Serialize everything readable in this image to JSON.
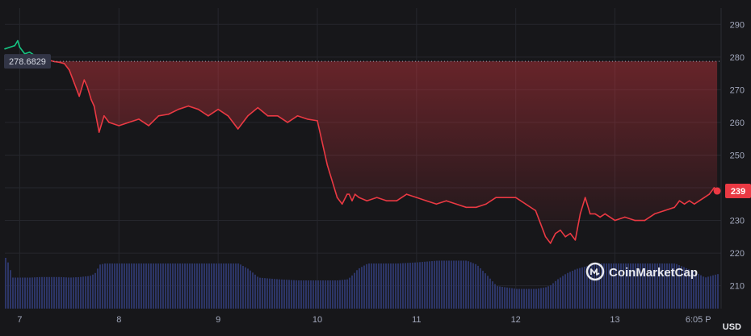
{
  "chart_data": {
    "type": "line",
    "title": "",
    "xlabel": "",
    "ylabel": "",
    "currency_unit": "USD",
    "ylim": [
      203,
      295
    ],
    "xlim": [
      6.85,
      14.07
    ],
    "grid": true,
    "x_ticks": [
      {
        "x": 7,
        "label": "7"
      },
      {
        "x": 8,
        "label": "8"
      },
      {
        "x": 9,
        "label": "9"
      },
      {
        "x": 10,
        "label": "10"
      },
      {
        "x": 11,
        "label": "11"
      },
      {
        "x": 12,
        "label": "12"
      },
      {
        "x": 13,
        "label": "13"
      },
      {
        "x": 13.84,
        "label": "6:05 P"
      }
    ],
    "y_ticks": [
      210,
      220,
      230,
      240,
      250,
      260,
      270,
      280,
      290
    ],
    "reference_line": {
      "value": 278.6829,
      "label": "278.6829"
    },
    "current_price": {
      "value": 239,
      "label": "239"
    },
    "watermark": {
      "text": "CoinMarketCap"
    },
    "colors": {
      "up": "#16c784",
      "down": "#ea3943",
      "volume": "#2c3566",
      "background": "#17171a",
      "badge_ref": "#323546"
    },
    "price_series": {
      "name": "",
      "x": [
        6.85,
        6.9,
        6.95,
        6.98,
        7.0,
        7.05,
        7.1,
        7.15,
        7.2,
        7.25,
        7.3,
        7.35,
        7.4,
        7.45,
        7.5,
        7.55,
        7.6,
        7.65,
        7.68,
        7.72,
        7.75,
        7.8,
        7.85,
        7.9,
        8.0,
        8.1,
        8.2,
        8.3,
        8.4,
        8.5,
        8.6,
        8.7,
        8.8,
        8.9,
        9.0,
        9.1,
        9.2,
        9.3,
        9.4,
        9.5,
        9.6,
        9.7,
        9.8,
        9.9,
        10.0,
        10.1,
        10.2,
        10.25,
        10.3,
        10.32,
        10.35,
        10.38,
        10.42,
        10.5,
        10.6,
        10.7,
        10.8,
        10.9,
        11.0,
        11.1,
        11.2,
        11.3,
        11.4,
        11.5,
        11.6,
        11.7,
        11.8,
        11.9,
        12.0,
        12.1,
        12.2,
        12.25,
        12.3,
        12.35,
        12.4,
        12.45,
        12.5,
        12.55,
        12.6,
        12.65,
        12.7,
        12.75,
        12.8,
        12.85,
        12.9,
        13.0,
        13.1,
        13.2,
        13.3,
        13.4,
        13.5,
        13.6,
        13.65,
        13.7,
        13.75,
        13.8,
        13.85,
        13.9,
        13.95,
        14.0,
        14.03
      ],
      "y": [
        282.5,
        283,
        283.5,
        285,
        283,
        281,
        281.5,
        280.5,
        279.5,
        279,
        279,
        278.6,
        278.4,
        278,
        276,
        272,
        268,
        273,
        271,
        267,
        265,
        257,
        262,
        260,
        259,
        260,
        261,
        259,
        262,
        262.5,
        264,
        265,
        264,
        262,
        264,
        262,
        258,
        262,
        264.5,
        262,
        262,
        260,
        262,
        261,
        260.5,
        247,
        237,
        235,
        238,
        238,
        236,
        238,
        237,
        236,
        237,
        236,
        236,
        238,
        237,
        236,
        235,
        236,
        235,
        234,
        234,
        235,
        237,
        237,
        237,
        235,
        233,
        229,
        225,
        223,
        226,
        227,
        225,
        226,
        224,
        232,
        237,
        232,
        232,
        231,
        232,
        230,
        231,
        230,
        230,
        232,
        233,
        234,
        236,
        235,
        236,
        235,
        236,
        237,
        238,
        240,
        239
      ]
    },
    "volume_series": {
      "name": "",
      "x": [
        6.85,
        6.88,
        6.92,
        7.0,
        7.1,
        7.2,
        7.3,
        7.4,
        7.5,
        7.6,
        7.7,
        7.75,
        7.8,
        7.85,
        7.9,
        8.0,
        8.2,
        8.4,
        8.6,
        8.8,
        9.0,
        9.2,
        9.3,
        9.4,
        9.6,
        9.8,
        10.0,
        10.2,
        10.3,
        10.35,
        10.4,
        10.5,
        10.6,
        10.8,
        11.0,
        11.2,
        11.4,
        11.5,
        11.6,
        11.7,
        11.8,
        12.0,
        12.2,
        12.3,
        12.35,
        12.4,
        12.5,
        12.6,
        12.8,
        13.0,
        13.2,
        13.4,
        13.6,
        13.8,
        13.9,
        14.0,
        14.05
      ],
      "rel": [
        0.9,
        0.8,
        0.55,
        0.55,
        0.55,
        0.56,
        0.56,
        0.56,
        0.55,
        0.56,
        0.58,
        0.62,
        0.78,
        0.8,
        0.8,
        0.8,
        0.8,
        0.8,
        0.8,
        0.8,
        0.8,
        0.8,
        0.7,
        0.55,
        0.52,
        0.5,
        0.5,
        0.5,
        0.52,
        0.6,
        0.7,
        0.8,
        0.8,
        0.8,
        0.82,
        0.85,
        0.85,
        0.85,
        0.78,
        0.6,
        0.4,
        0.35,
        0.35,
        0.38,
        0.42,
        0.5,
        0.62,
        0.7,
        0.8,
        0.8,
        0.8,
        0.8,
        0.8,
        0.65,
        0.55,
        0.6,
        0.62
      ]
    }
  }
}
